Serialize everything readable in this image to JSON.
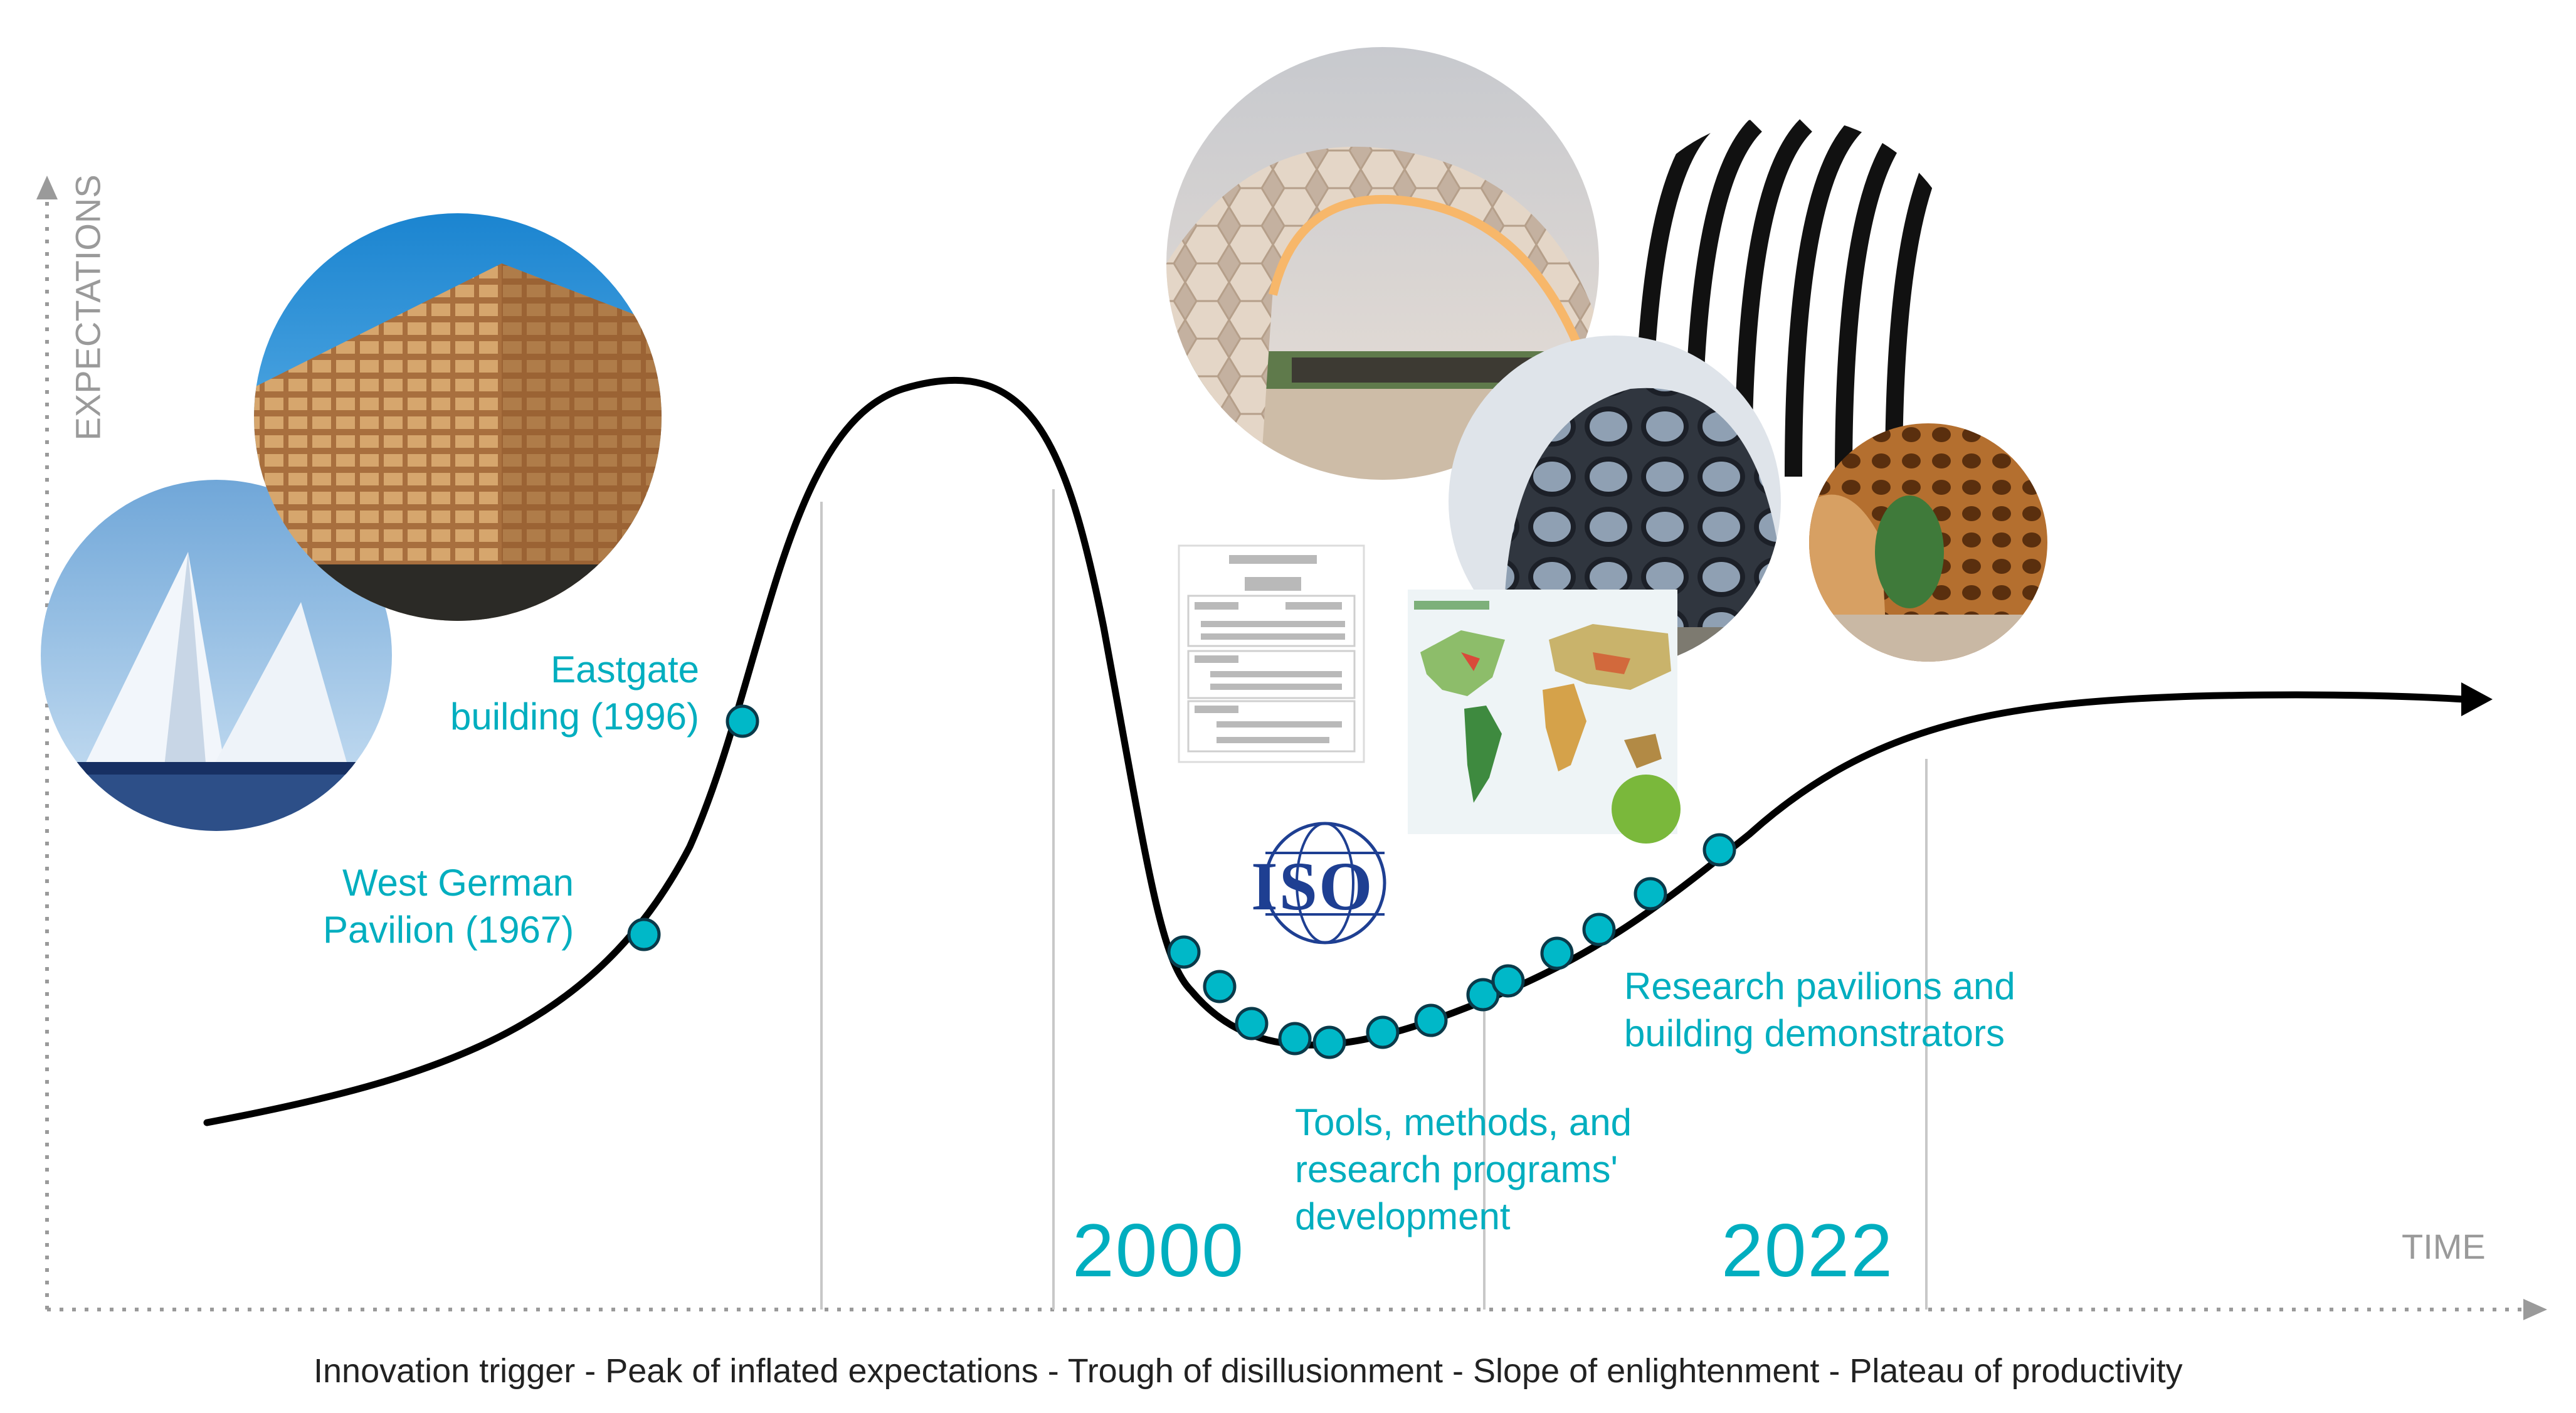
{
  "axes": {
    "y_label": "EXPECTATIONS",
    "x_label": "TIME"
  },
  "phases_caption": "Innovation trigger - Peak of inflated expectations - Trough of disillusionment - Slope of enlightenment - Plateau of productivity",
  "years": [
    "2000",
    "2022"
  ],
  "milestones": {
    "west_german": [
      "West German",
      "Pavilion (1967)"
    ],
    "eastgate": [
      "Eastgate",
      "building (1996)"
    ],
    "tools": [
      "Tools, methods, and",
      "research programs'",
      "development"
    ],
    "research": [
      "Research pavilions and",
      "building demonstrators"
    ]
  },
  "logo_text": "ISO",
  "curve_points_count": 15,
  "colors": {
    "accent": "#00aebf",
    "curve": "#000000",
    "axis": "#9a9a9a",
    "gridline": "#c8c8c8"
  },
  "images": [
    "tent-pavilion-photo",
    "eastgate-building-photo",
    "timber-arch-pavilion-photo",
    "woven-shell-pavilion-photo",
    "striped-fibre-structure-photo",
    "timber-cell-structure-photo",
    "flowchart-document-thumbnail",
    "world-climate-map-thumbnail"
  ]
}
